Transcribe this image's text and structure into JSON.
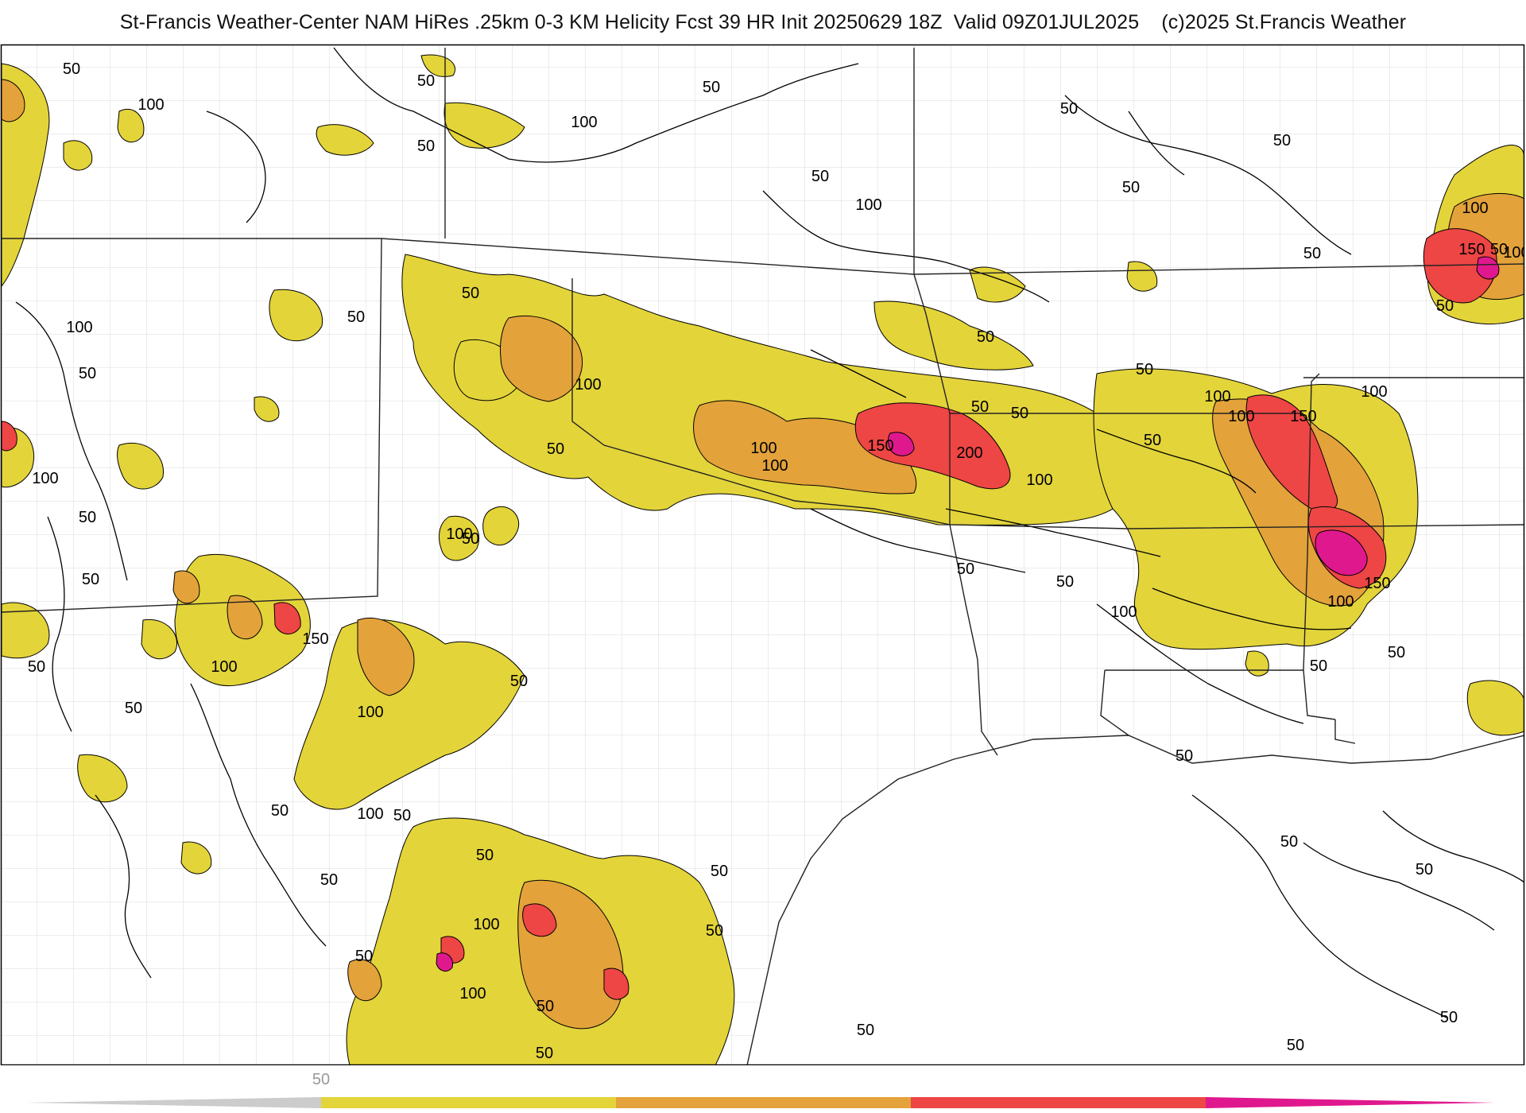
{
  "title": "St-Francis Weather-Center NAM HiRes .25km 0-3 KM Helicity Fcst 39 HR Init 20250629 18Z  Valid 09Z01JUL2025    (c)2025 St.Francis Weather",
  "colors": {
    "level_50": "#e3d43a",
    "level_100": "#e3a23a",
    "level_150": "#ee4545",
    "level_200": "#e0188e",
    "contour": "#000000",
    "county_lines": "#bdbdbd",
    "legend_track": "#cccccc"
  },
  "legend": {
    "tick_label": "50",
    "bands": [
      "50",
      "100",
      "150",
      "200"
    ]
  },
  "contour_labels": [
    {
      "text": "50"
    },
    {
      "text": "100"
    },
    {
      "text": "50"
    },
    {
      "text": "50"
    },
    {
      "text": "100"
    },
    {
      "text": "50"
    },
    {
      "text": "50"
    },
    {
      "text": "100"
    },
    {
      "text": "50"
    },
    {
      "text": "50"
    },
    {
      "text": "50"
    },
    {
      "text": "50"
    },
    {
      "text": "100"
    },
    {
      "text": "50"
    },
    {
      "text": "100"
    },
    {
      "text": "50"
    },
    {
      "text": "100"
    },
    {
      "text": "50"
    },
    {
      "text": "50"
    },
    {
      "text": "50"
    },
    {
      "text": "100"
    },
    {
      "text": "50"
    },
    {
      "text": "100"
    },
    {
      "text": "150"
    },
    {
      "text": "200"
    },
    {
      "text": "50"
    },
    {
      "text": "100"
    },
    {
      "text": "50"
    },
    {
      "text": "100"
    },
    {
      "text": "50"
    },
    {
      "text": "50"
    },
    {
      "text": "50"
    },
    {
      "text": "50"
    },
    {
      "text": "100"
    },
    {
      "text": "100"
    },
    {
      "text": "150"
    },
    {
      "text": "100"
    },
    {
      "text": "50"
    },
    {
      "text": "150"
    },
    {
      "text": "100"
    },
    {
      "text": "100"
    },
    {
      "text": "50"
    },
    {
      "text": "50"
    },
    {
      "text": "50"
    },
    {
      "text": "150"
    },
    {
      "text": "100"
    },
    {
      "text": "150"
    },
    {
      "text": "100"
    },
    {
      "text": "50"
    },
    {
      "text": "50"
    },
    {
      "text": "50"
    },
    {
      "text": "100"
    },
    {
      "text": "50"
    },
    {
      "text": "50"
    },
    {
      "text": "100"
    },
    {
      "text": "50"
    },
    {
      "text": "100"
    },
    {
      "text": "50"
    },
    {
      "text": "50"
    },
    {
      "text": "100"
    },
    {
      "text": "50"
    },
    {
      "text": "100"
    },
    {
      "text": "50"
    },
    {
      "text": "50"
    },
    {
      "text": "50"
    },
    {
      "text": "50"
    },
    {
      "text": "50"
    },
    {
      "text": "50"
    },
    {
      "text": "50"
    },
    {
      "text": "50"
    },
    {
      "text": "50"
    },
    {
      "text": "50"
    },
    {
      "text": "50"
    }
  ]
}
